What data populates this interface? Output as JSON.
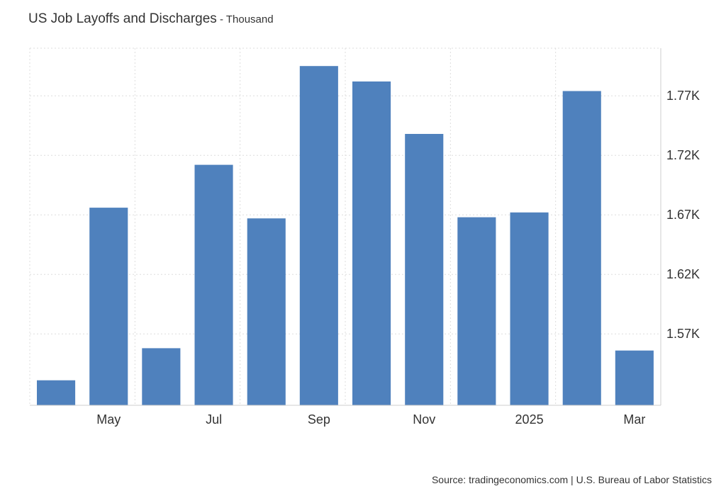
{
  "title": "US Job Layoffs and Discharges",
  "subtitle": " - Thousand",
  "source": "Source: tradingeconomics.com | U.S. Bureau of Labor Statistics",
  "colors": {
    "bar": "#4f81bd",
    "grid": "#dddddd",
    "axis": "#cccccc",
    "text": "#333333"
  },
  "chart_data": {
    "type": "bar",
    "title": "US Job Layoffs and Discharges",
    "subtitle": "Thousand",
    "unit": "Thousand",
    "categories": [
      "2024-04",
      "2024-05",
      "2024-06",
      "2024-07",
      "2024-08",
      "2024-09",
      "2024-10",
      "2024-11",
      "2024-12",
      "2025-01",
      "2025-02",
      "2025-03"
    ],
    "values": [
      1531,
      1676,
      1558,
      1712,
      1667,
      1795,
      1782,
      1738,
      1668,
      1672,
      1774,
      1556
    ],
    "x_tick_labels": [
      "",
      "May",
      "",
      "Jul",
      "",
      "Sep",
      "",
      "Nov",
      "",
      "2025",
      "",
      "Mar"
    ],
    "y_ticks": [
      1570,
      1620,
      1670,
      1720,
      1770
    ],
    "y_tick_labels": [
      "1.57K",
      "1.62K",
      "1.67K",
      "1.72K",
      "1.77K"
    ],
    "ylim": [
      1510,
      1810
    ],
    "y_axis_side": "right",
    "grid": true,
    "legend": "none"
  }
}
